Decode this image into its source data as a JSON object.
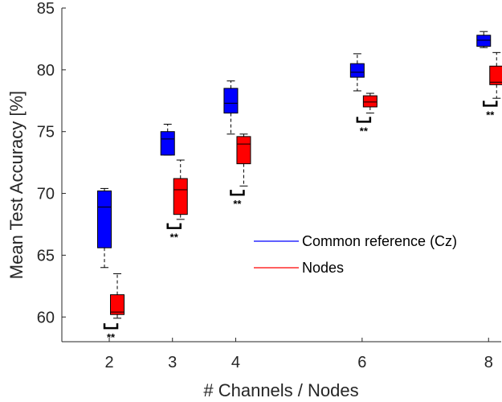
{
  "chart_data": {
    "type": "box",
    "xlabel": "# Channels / Nodes",
    "ylabel": "Mean Test Accuracy [%]",
    "ylim": [
      58,
      85
    ],
    "xlim": [
      1.25,
      8.2
    ],
    "x_ticks": [
      2,
      3,
      4,
      6,
      8
    ],
    "y_ticks": [
      60,
      65,
      70,
      75,
      80,
      85
    ],
    "grid": false,
    "legend_position": "right-middle",
    "series": [
      {
        "name": "Common reference (Cz)",
        "color": "#0000ff",
        "boxes": [
          {
            "x": 2,
            "whisker_low": 64.0,
            "q1": 65.6,
            "median": 68.9,
            "q3": 70.2,
            "whisker_high": 70.4
          },
          {
            "x": 3,
            "whisker_low": 73.1,
            "q1": 73.1,
            "median": 74.4,
            "q3": 75.0,
            "whisker_high": 75.6
          },
          {
            "x": 4,
            "whisker_low": 74.8,
            "q1": 76.5,
            "median": 77.3,
            "q3": 78.5,
            "whisker_high": 79.1
          },
          {
            "x": 6,
            "whisker_low": 78.3,
            "q1": 79.4,
            "median": 79.8,
            "q3": 80.5,
            "whisker_high": 81.3
          },
          {
            "x": 8,
            "whisker_low": 81.8,
            "q1": 81.9,
            "median": 82.4,
            "q3": 82.8,
            "whisker_high": 83.1
          }
        ]
      },
      {
        "name": "Nodes",
        "color": "#ff0000",
        "boxes": [
          {
            "x": 2,
            "whisker_low": 59.9,
            "q1": 60.2,
            "median": 60.4,
            "q3": 61.8,
            "whisker_high": 63.5
          },
          {
            "x": 3,
            "whisker_low": 67.9,
            "q1": 68.3,
            "median": 70.3,
            "q3": 71.2,
            "whisker_high": 72.7
          },
          {
            "x": 4,
            "whisker_low": 70.6,
            "q1": 72.4,
            "median": 74.0,
            "q3": 74.6,
            "whisker_high": 74.8
          },
          {
            "x": 6,
            "whisker_low": 76.5,
            "q1": 77.0,
            "median": 77.4,
            "q3": 77.9,
            "whisker_high": 78.1
          },
          {
            "x": 8,
            "whisker_low": 77.7,
            "q1": 78.8,
            "median": 79.0,
            "q3": 80.3,
            "whisker_high": 81.4
          }
        ]
      }
    ],
    "significance": [
      {
        "x": 2,
        "y": 59.1,
        "label": "**"
      },
      {
        "x": 3,
        "y": 67.2,
        "label": "**"
      },
      {
        "x": 4,
        "y": 69.9,
        "label": "**"
      },
      {
        "x": 6,
        "y": 75.8,
        "label": "**"
      },
      {
        "x": 8,
        "y": 77.1,
        "label": "**"
      }
    ]
  }
}
